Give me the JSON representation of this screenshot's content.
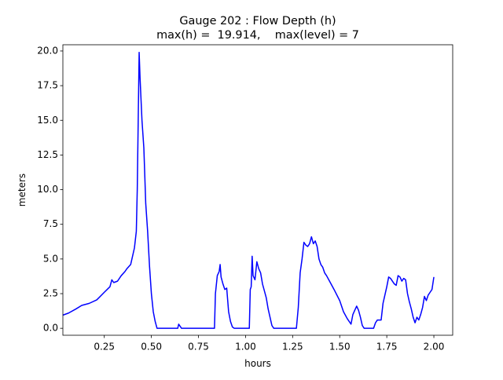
{
  "chart_data": {
    "type": "line",
    "title": "Gauge 202 : Flow Depth (h)",
    "subtitle": "max(h) =  19.914,    max(level) = 7",
    "xlabel": "hours",
    "ylabel": "meters",
    "color": "#0000ff",
    "x": [
      0.03,
      0.06,
      0.1,
      0.13,
      0.17,
      0.21,
      0.25,
      0.28,
      0.29,
      0.3,
      0.32,
      0.34,
      0.36,
      0.37,
      0.39,
      0.4,
      0.41,
      0.42,
      0.425,
      0.43,
      0.435,
      0.44,
      0.45,
      0.46,
      0.47,
      0.48,
      0.49,
      0.5,
      0.51,
      0.52,
      0.53,
      0.64,
      0.645,
      0.66,
      0.835,
      0.84,
      0.85,
      0.86,
      0.865,
      0.87,
      0.88,
      0.89,
      0.9,
      0.91,
      0.92,
      0.93,
      0.94,
      1.02,
      1.025,
      1.03,
      1.035,
      1.04,
      1.05,
      1.06,
      1.07,
      1.08,
      1.09,
      1.1,
      1.11,
      1.12,
      1.13,
      1.14,
      1.15,
      1.27,
      1.28,
      1.29,
      1.3,
      1.31,
      1.32,
      1.33,
      1.34,
      1.35,
      1.36,
      1.37,
      1.38,
      1.39,
      1.4,
      1.41,
      1.42,
      1.43,
      1.45,
      1.47,
      1.5,
      1.52,
      1.54,
      1.56,
      1.57,
      1.58,
      1.59,
      1.6,
      1.61,
      1.62,
      1.63,
      1.68,
      1.69,
      1.7,
      1.72,
      1.73,
      1.75,
      1.76,
      1.77,
      1.79,
      1.8,
      1.81,
      1.82,
      1.83,
      1.84,
      1.85,
      1.86,
      1.87,
      1.88,
      1.89,
      1.9,
      1.91,
      1.92,
      1.93,
      1.94,
      1.95,
      1.96,
      1.97,
      1.98,
      1.99,
      2.0
    ],
    "values": [
      0.95,
      1.1,
      1.4,
      1.65,
      1.8,
      2.05,
      2.6,
      3.0,
      3.5,
      3.3,
      3.4,
      3.8,
      4.1,
      4.3,
      4.6,
      5.2,
      5.8,
      7,
      10,
      15,
      19.9,
      18,
      15,
      13,
      9,
      7,
      4.5,
      2.5,
      1.2,
      0.5,
      0,
      0,
      0.3,
      0,
      0,
      2.5,
      3.8,
      4.1,
      4.6,
      3.7,
      3.2,
      2.8,
      2.9,
      1.2,
      0.5,
      0.1,
      0,
      0,
      2.8,
      3.0,
      5.2,
      3.8,
      3.5,
      4.8,
      4.3,
      4,
      3.2,
      2.7,
      2.2,
      1.4,
      0.8,
      0.2,
      0,
      0,
      1.5,
      4.0,
      5.0,
      6.2,
      6.0,
      5.9,
      6.1,
      6.6,
      6.1,
      6.3,
      5.9,
      5.0,
      4.6,
      4.4,
      4.0,
      3.8,
      3.3,
      2.8,
      2.0,
      1.2,
      0.7,
      0.3,
      1.0,
      1.3,
      1.6,
      1.3,
      0.8,
      0.2,
      0,
      0,
      0.4,
      0.6,
      0.6,
      1.8,
      3.0,
      3.7,
      3.6,
      3.2,
      3.1,
      3.8,
      3.7,
      3.4,
      3.6,
      3.5,
      2.5,
      1.9,
      1.4,
      0.8,
      0.4,
      0.8,
      0.6,
      1.0,
      1.5,
      2.3,
      2.0,
      2.4,
      2.6,
      2.8,
      3.7
    ],
    "xlim": [
      0.03,
      2.1
    ],
    "ylim": [
      -0.5,
      20.45
    ],
    "xticks": [
      {
        "value": 0.25,
        "label": "0.25"
      },
      {
        "value": 0.5,
        "label": "0.50"
      },
      {
        "value": 0.75,
        "label": "0.75"
      },
      {
        "value": 1.0,
        "label": "1.00"
      },
      {
        "value": 1.25,
        "label": "1.25"
      },
      {
        "value": 1.5,
        "label": "1.50"
      },
      {
        "value": 1.75,
        "label": "1.75"
      },
      {
        "value": 2.0,
        "label": "2.00"
      }
    ],
    "yticks": [
      {
        "value": 0,
        "label": "0.0"
      },
      {
        "value": 2.5,
        "label": "2.5"
      },
      {
        "value": 5,
        "label": "5.0"
      },
      {
        "value": 7.5,
        "label": "7.5"
      },
      {
        "value": 10,
        "label": "10.0"
      },
      {
        "value": 12.5,
        "label": "12.5"
      },
      {
        "value": 15,
        "label": "15.0"
      },
      {
        "value": 17.5,
        "label": "17.5"
      },
      {
        "value": 20,
        "label": "20.0"
      }
    ],
    "grid": false
  }
}
